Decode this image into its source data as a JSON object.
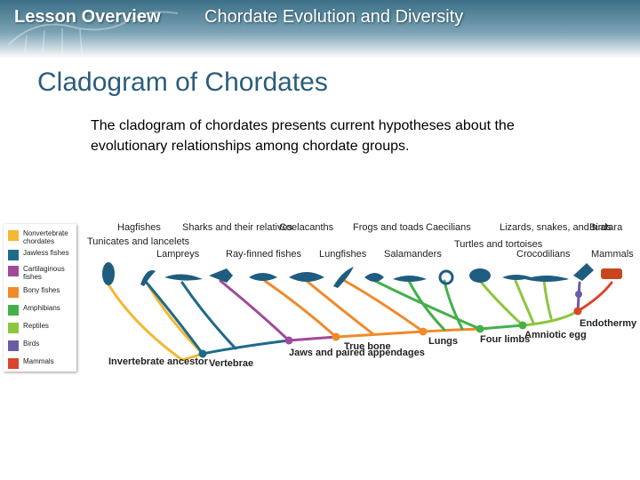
{
  "header": {
    "left_title": "Lesson Overview",
    "right_title": "Chordate Evolution and Diversity"
  },
  "slide": {
    "title": "Cladogram of Chordates",
    "description": "The cladogram of chordates presents current hypotheses about the evolutionary relationships among chordate groups."
  },
  "legend": [
    {
      "label": "Nonvertebrate chordates",
      "color": "#f4b731"
    },
    {
      "label": "Jawless fishes",
      "color": "#1f6a8a"
    },
    {
      "label": "Cartilaginous fishes",
      "color": "#a14a9a"
    },
    {
      "label": "Bony fishes",
      "color": "#f08a2a"
    },
    {
      "label": "Amphibians",
      "color": "#43b049"
    },
    {
      "label": "Reptiles",
      "color": "#8dc63f"
    },
    {
      "label": "Birds",
      "color": "#6b5aa6"
    },
    {
      "label": "Mammals",
      "color": "#d9462b"
    }
  ],
  "taxa": [
    {
      "label": "Tunicates and lancelets"
    },
    {
      "label": "Hagfishes"
    },
    {
      "label": "Lampreys"
    },
    {
      "label": "Sharks and their relatives"
    },
    {
      "label": "Ray-finned fishes"
    },
    {
      "label": "Coelacanths"
    },
    {
      "label": "Lungfishes"
    },
    {
      "label": "Frogs and toads"
    },
    {
      "label": "Salamanders"
    },
    {
      "label": "Caecilians"
    },
    {
      "label": "Turtles and tortoises"
    },
    {
      "label": "Lizards, snakes, and tuatara"
    },
    {
      "label": "Crocodilians"
    },
    {
      "label": "Birds"
    },
    {
      "label": "Mammals"
    }
  ],
  "nodes": [
    {
      "label": "Invertebrate ancestor"
    },
    {
      "label": "Vertebrae"
    },
    {
      "label": "Jaws and paired appendages"
    },
    {
      "label": "True bone"
    },
    {
      "label": "Lungs"
    },
    {
      "label": "Four limbs"
    },
    {
      "label": "Amniotic egg"
    },
    {
      "label": "Endothermy"
    }
  ]
}
